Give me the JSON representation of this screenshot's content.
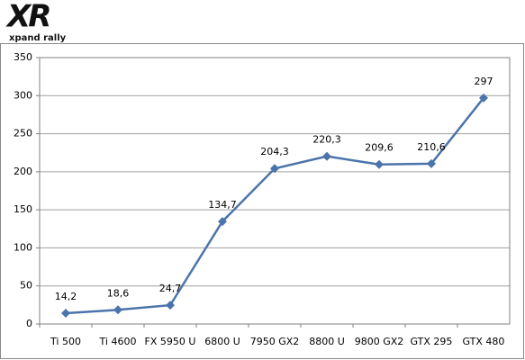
{
  "logo": {
    "mark": "XR",
    "tagline": "xpand rally"
  },
  "chart_data": {
    "type": "line",
    "categories": [
      "Ti 500",
      "Ti 4600",
      "FX 5950 U",
      "6800 U",
      "7950 GX2",
      "8800 U",
      "9800 GX2",
      "GTX 295",
      "GTX 480"
    ],
    "series": [
      {
        "color": "#4a74aa",
        "values": [
          14.2,
          18.6,
          24.7,
          134.7,
          204.3,
          220.3,
          209.6,
          210.6,
          297
        ],
        "value_labels": [
          "14,2",
          "18,6",
          "24,7",
          "134,7",
          "204,3",
          "220,3",
          "209,6",
          "210,6",
          "297"
        ]
      }
    ],
    "ylim": [
      0,
      350
    ],
    "yticks": [
      0,
      50,
      100,
      150,
      200,
      250,
      300,
      350
    ],
    "grid": true
  }
}
